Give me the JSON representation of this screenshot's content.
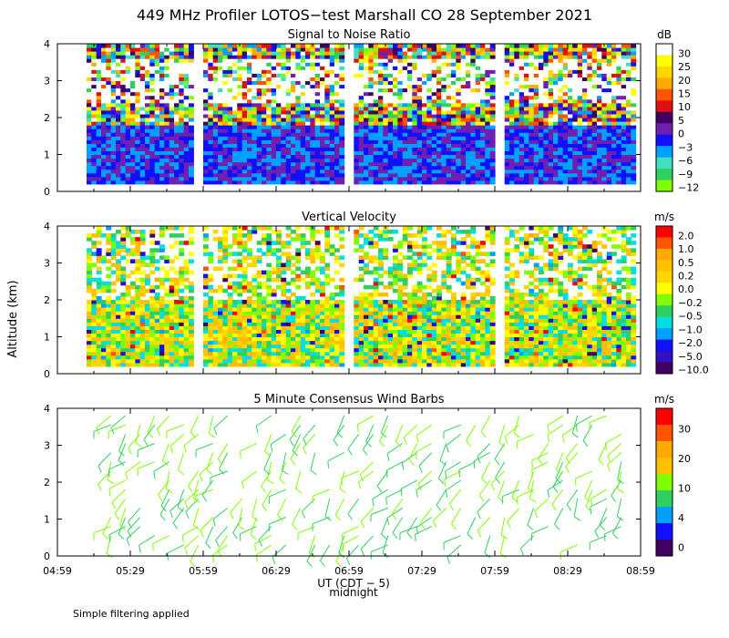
{
  "chart_data": {
    "type": "heatmap",
    "title": "449 MHz Profiler LOTOS−test Marshall CO 28 September 2021",
    "ylabel": "Altitude (km)",
    "xlabel": "UT (CDT − 5)",
    "midnight_label": "midnight",
    "x_tick_labels": [
      "04:59",
      "05:29",
      "05:59",
      "06:29",
      "06:59",
      "07:29",
      "07:59",
      "08:29",
      "08:59"
    ],
    "xlim_minutes": [
      0,
      240
    ],
    "ylim": [
      0,
      4
    ],
    "y_tick_labels": [
      "0",
      "1",
      "2",
      "3",
      "4"
    ],
    "data_gaps_minutes": [
      [
        56,
        60
      ],
      [
        117,
        121
      ],
      [
        180,
        184
      ]
    ],
    "panels": [
      {
        "title": "Signal to Noise Ratio",
        "unit": "dB",
        "colorbar_labels": [
          "30",
          "25",
          "20",
          "15",
          "10",
          "5",
          "0",
          "−3",
          "−6",
          "−9",
          "−12"
        ],
        "colorbar_colors": [
          "#ffffff",
          "#ffff00",
          "#ffd700",
          "#ffaa00",
          "#ff5500",
          "#e01010",
          "#400060",
          "#7020b0",
          "#1010ff",
          "#00a0ff",
          "#40e0c0",
          "#30d060",
          "#80ff00"
        ]
      },
      {
        "title": "Vertical Velocity",
        "unit": "m/s",
        "colorbar_labels": [
          "2.0",
          "1.0",
          "0.5",
          "0.2",
          "0.0",
          "−0.2",
          "−0.5",
          "−1.0",
          "−2.0",
          "−5.0",
          "−10.0"
        ],
        "colorbar_colors": [
          "#ff0000",
          "#ff5500",
          "#ffaa00",
          "#ffc000",
          "#ffd700",
          "#ffff00",
          "#80ff00",
          "#30d060",
          "#00e0e0",
          "#00a0ff",
          "#1010ff",
          "#3010c0",
          "#400060"
        ]
      },
      {
        "title": "5 Minute Consensus Wind Barbs",
        "unit": "m/s",
        "colorbar_labels": [
          "30",
          "20",
          "10",
          "4",
          "0"
        ],
        "colorbar_colors": [
          "#ff0000",
          "#ff5500",
          "#ffaa00",
          "#ffc000",
          "#80ff00",
          "#30d060",
          "#00a0ff",
          "#1010ff",
          "#400060"
        ]
      }
    ]
  },
  "footer_note": "Simple filtering applied"
}
